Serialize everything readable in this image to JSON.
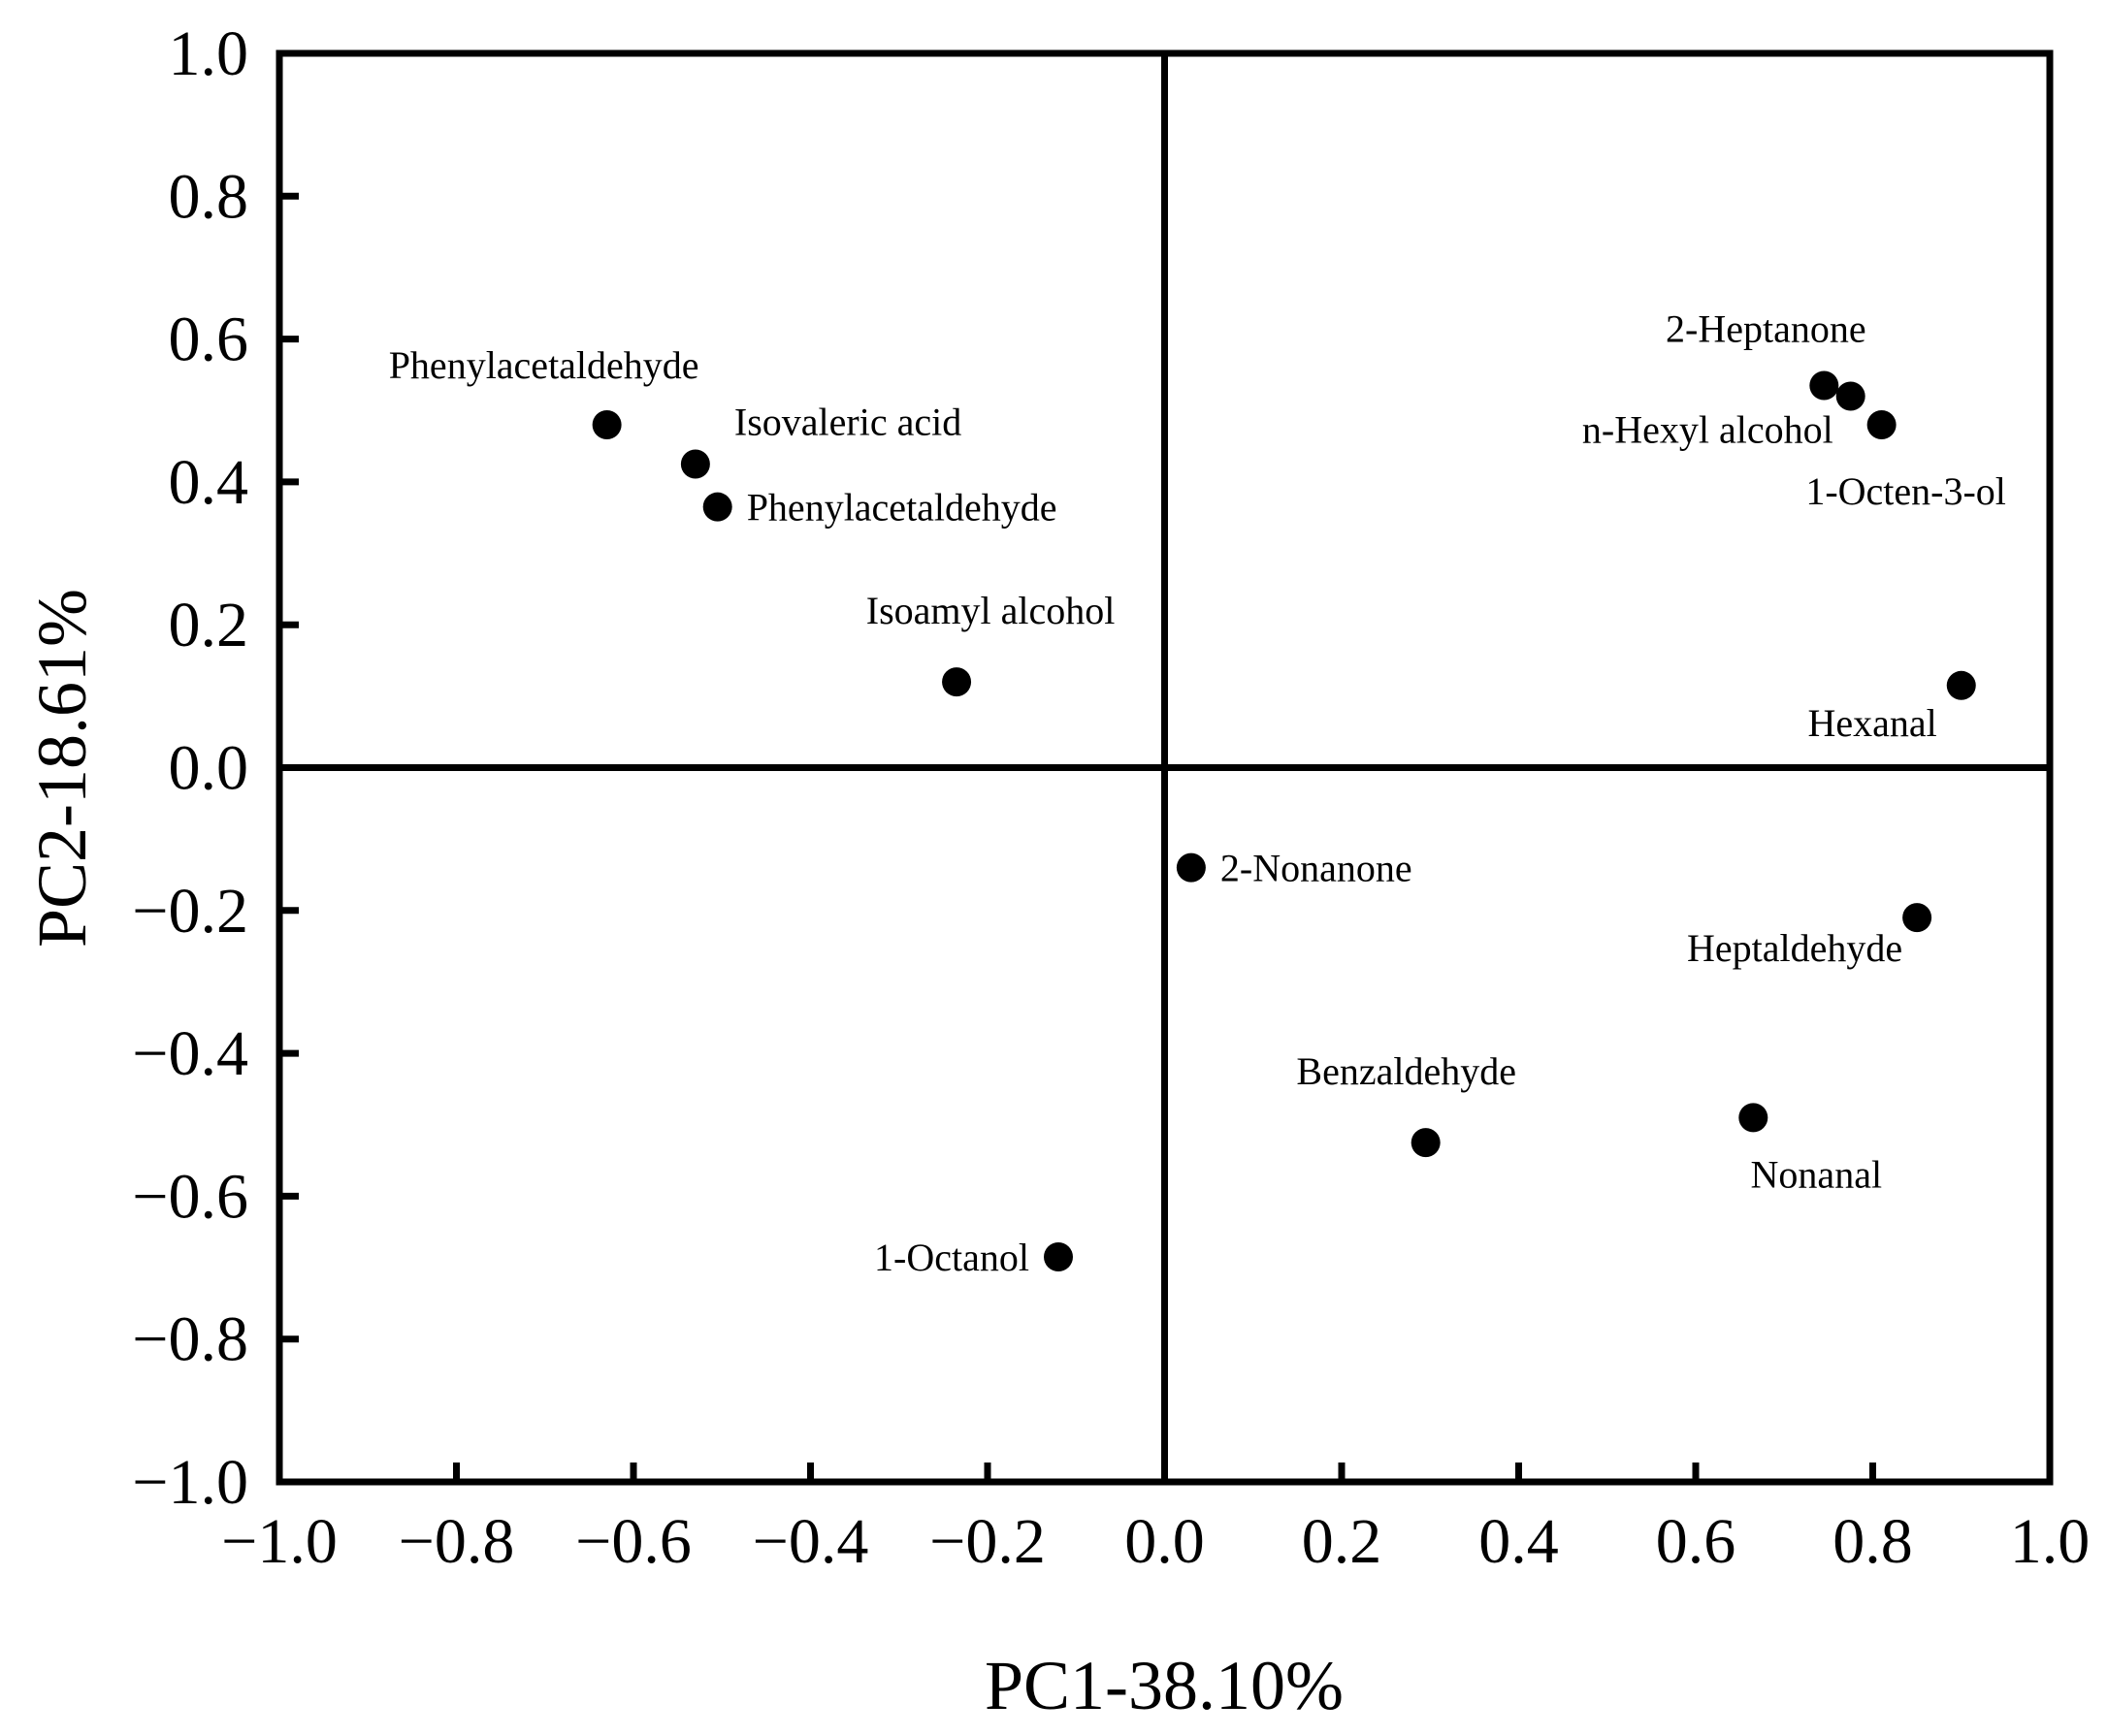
{
  "chart_data": {
    "type": "scatter",
    "title": "",
    "xlabel": "PC1-38.10%",
    "ylabel": "PC2-18.61%",
    "xlim": [
      -1.0,
      1.0
    ],
    "ylim": [
      -1.0,
      1.0
    ],
    "x_ticks": [
      -1.0,
      -0.8,
      -0.6,
      -0.4,
      -0.2,
      0.0,
      0.2,
      0.4,
      0.6,
      0.8,
      1.0
    ],
    "y_ticks": [
      -1.0,
      -0.8,
      -0.6,
      -0.4,
      -0.2,
      0.0,
      0.2,
      0.4,
      0.6,
      0.8,
      1.0
    ],
    "x_tick_labels": [
      "−1.0",
      "−0.8",
      "−0.6",
      "−0.4",
      "−0.2",
      "0.0",
      "0.2",
      "0.4",
      "0.6",
      "0.8",
      "1.0"
    ],
    "y_tick_labels": [
      "−1.0",
      "−0.8",
      "−0.6",
      "−0.4",
      "−0.2",
      "0.0",
      "0.2",
      "0.4",
      "0.6",
      "0.8",
      "1.0"
    ],
    "grid": false,
    "quadrant_lines": true,
    "marker_color": "#000000",
    "points": [
      {
        "x": -0.63,
        "y": 0.48,
        "name": "Phenylacetaldehyde",
        "label_pos": "top-left"
      },
      {
        "x": -0.53,
        "y": 0.425,
        "name": "Isovaleric acid",
        "label_pos": "top-right"
      },
      {
        "x": -0.505,
        "y": 0.365,
        "name": "Phenylacetaldehyde",
        "label_pos": "right"
      },
      {
        "x": -0.235,
        "y": 0.12,
        "name": "Isoamyl alcohol",
        "label_pos": "above"
      },
      {
        "x": -0.12,
        "y": -0.685,
        "name": "1-Octanol",
        "label_pos": "left"
      },
      {
        "x": 0.03,
        "y": -0.14,
        "name": "2-Nonanone",
        "label_pos": "right"
      },
      {
        "x": 0.745,
        "y": 0.535,
        "name": "2-Heptanone",
        "label_pos": "above-left"
      },
      {
        "x": 0.775,
        "y": 0.52,
        "name": "n-Hexyl alcohol",
        "label_pos": "below-left"
      },
      {
        "x": 0.81,
        "y": 0.48,
        "name": "1-Octen-3-ol",
        "label_pos": "below"
      },
      {
        "x": 0.9,
        "y": 0.115,
        "name": "Hexanal",
        "label_pos": "below-left"
      },
      {
        "x": 0.85,
        "y": -0.21,
        "name": "Heptaldehyde",
        "label_pos": "below-left"
      },
      {
        "x": 0.665,
        "y": -0.49,
        "name": "Nonanal",
        "label_pos": "below"
      },
      {
        "x": 0.295,
        "y": -0.525,
        "name": "Benzaldehyde",
        "label_pos": "above"
      }
    ]
  }
}
